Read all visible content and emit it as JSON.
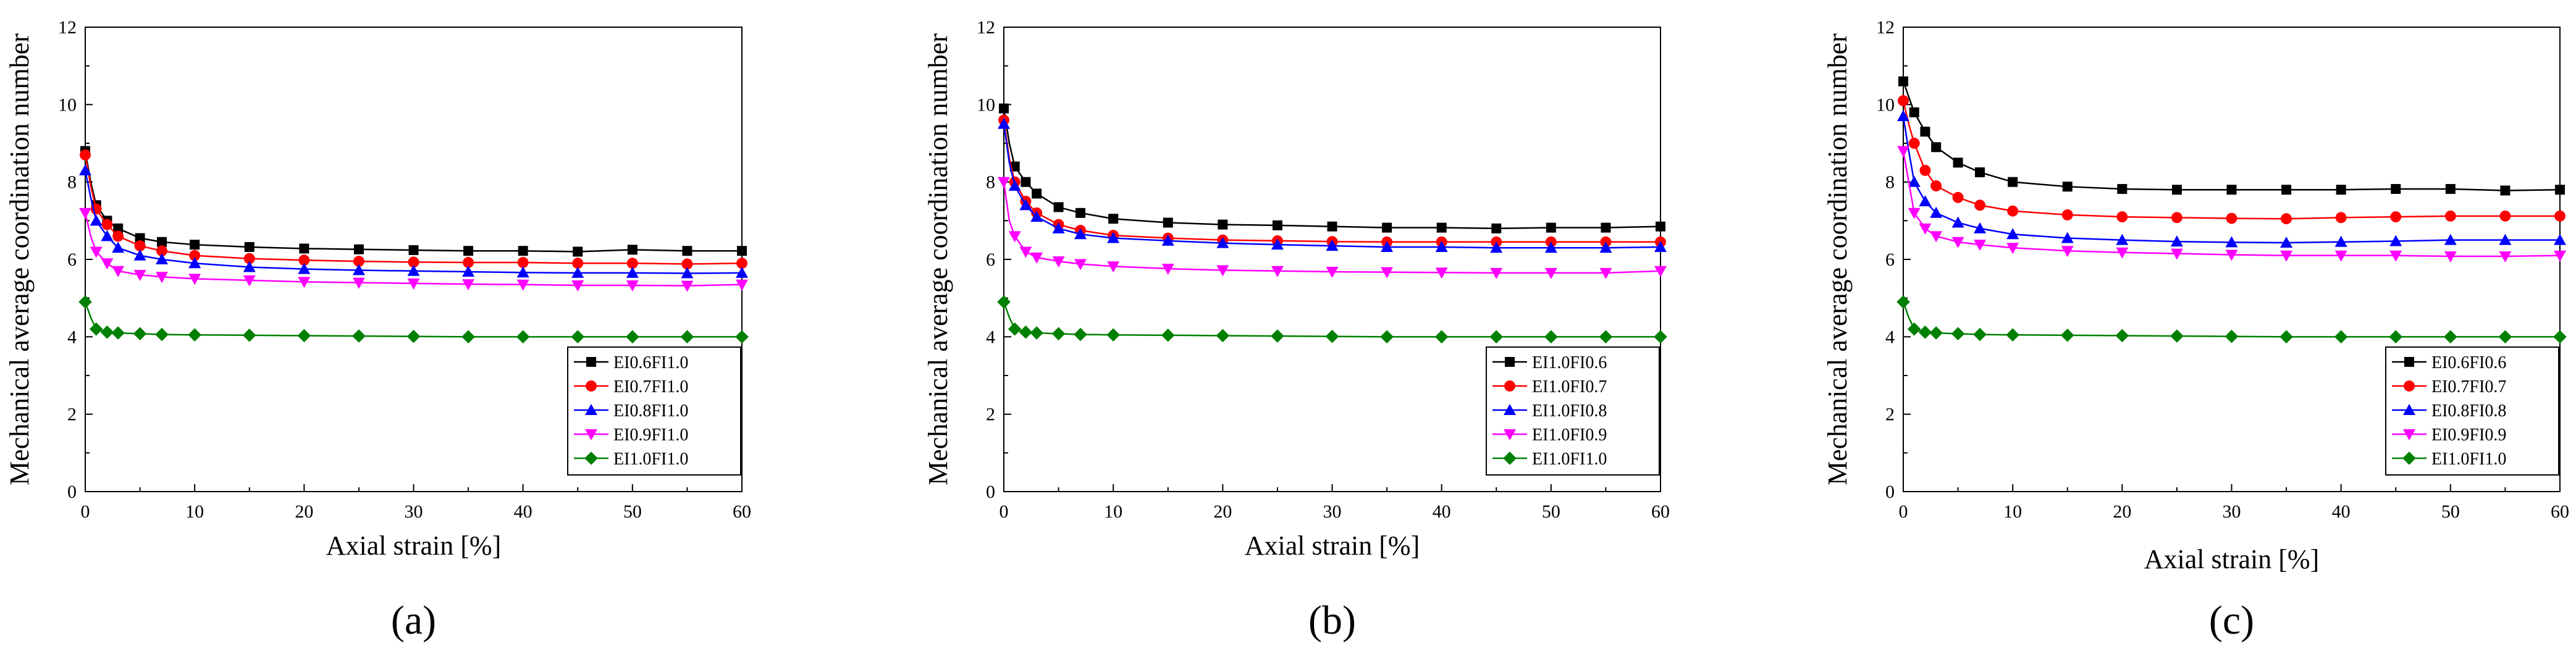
{
  "chart_data": [
    {
      "type": "line",
      "panel_label": "(a)",
      "xlabel": "Axial strain [%]",
      "ylabel": "Mechanical average coordination number",
      "xlim": [
        0,
        60
      ],
      "ylim": [
        0,
        12
      ],
      "xticks": [
        0,
        10,
        20,
        30,
        40,
        50,
        60
      ],
      "yticks": [
        0,
        2,
        4,
        6,
        8,
        10,
        12
      ],
      "legend_position": "bottom-right",
      "series": [
        {
          "name": "EI0.6FI1.0",
          "color": "#000000",
          "marker": "square",
          "x": [
            0,
            0.5,
            1,
            2,
            3,
            5,
            7,
            10,
            15,
            20,
            25,
            30,
            35,
            40,
            45,
            50,
            55,
            60
          ],
          "y": [
            8.8,
            8.0,
            7.4,
            7.0,
            6.8,
            6.55,
            6.45,
            6.38,
            6.32,
            6.28,
            6.26,
            6.24,
            6.22,
            6.22,
            6.2,
            6.25,
            6.22,
            6.22
          ]
        },
        {
          "name": "EI0.7FI1.0",
          "color": "#ff0000",
          "marker": "circle",
          "x": [
            0,
            0.5,
            1,
            2,
            3,
            5,
            7,
            10,
            15,
            20,
            25,
            30,
            35,
            40,
            45,
            50,
            55,
            60
          ],
          "y": [
            8.7,
            7.9,
            7.3,
            6.9,
            6.6,
            6.35,
            6.22,
            6.1,
            6.02,
            5.98,
            5.95,
            5.93,
            5.92,
            5.92,
            5.9,
            5.9,
            5.88,
            5.9
          ]
        },
        {
          "name": "EI0.8FI1.0",
          "color": "#0000ff",
          "marker": "triangle-up",
          "x": [
            0,
            0.5,
            1,
            2,
            3,
            5,
            7,
            10,
            15,
            20,
            25,
            30,
            35,
            40,
            45,
            50,
            55,
            60
          ],
          "y": [
            8.3,
            7.6,
            7.0,
            6.6,
            6.3,
            6.1,
            6.0,
            5.9,
            5.8,
            5.75,
            5.72,
            5.7,
            5.68,
            5.66,
            5.65,
            5.65,
            5.64,
            5.65
          ]
        },
        {
          "name": "EI0.9FI1.0",
          "color": "#ff00ff",
          "marker": "triangle-down",
          "x": [
            0,
            0.5,
            1,
            2,
            3,
            5,
            7,
            10,
            15,
            20,
            25,
            30,
            35,
            40,
            45,
            50,
            55,
            60
          ],
          "y": [
            7.2,
            6.6,
            6.2,
            5.9,
            5.7,
            5.6,
            5.55,
            5.5,
            5.46,
            5.42,
            5.4,
            5.38,
            5.36,
            5.35,
            5.33,
            5.33,
            5.32,
            5.35
          ]
        },
        {
          "name": "EI1.0FI1.0",
          "color": "#008000",
          "marker": "diamond",
          "x": [
            0,
            0.5,
            1,
            2,
            3,
            5,
            7,
            10,
            15,
            20,
            25,
            30,
            35,
            40,
            45,
            50,
            55,
            60
          ],
          "y": [
            4.9,
            4.5,
            4.2,
            4.12,
            4.1,
            4.08,
            4.06,
            4.05,
            4.04,
            4.03,
            4.02,
            4.01,
            4.0,
            4.0,
            4.0,
            4.0,
            4.0,
            4.0
          ]
        }
      ]
    },
    {
      "type": "line",
      "panel_label": "(b)",
      "xlabel": "Axial strain [%]",
      "ylabel": "Mechanical average coordination number",
      "xlim": [
        0,
        60
      ],
      "ylim": [
        0,
        12
      ],
      "xticks": [
        0,
        10,
        20,
        30,
        40,
        50,
        60
      ],
      "yticks": [
        0,
        2,
        4,
        6,
        8,
        10,
        12
      ],
      "legend_position": "bottom-right",
      "series": [
        {
          "name": "EI1.0FI0.6",
          "color": "#000000",
          "marker": "square",
          "x": [
            0,
            0.5,
            1,
            2,
            3,
            5,
            7,
            10,
            15,
            20,
            25,
            30,
            35,
            40,
            45,
            50,
            55,
            60
          ],
          "y": [
            9.9,
            9.0,
            8.4,
            8.0,
            7.7,
            7.35,
            7.2,
            7.05,
            6.95,
            6.9,
            6.88,
            6.85,
            6.82,
            6.82,
            6.8,
            6.82,
            6.82,
            6.85
          ]
        },
        {
          "name": "EI1.0FI0.7",
          "color": "#ff0000",
          "marker": "circle",
          "x": [
            0,
            0.5,
            1,
            2,
            3,
            5,
            7,
            10,
            15,
            20,
            25,
            30,
            35,
            40,
            45,
            50,
            55,
            60
          ],
          "y": [
            9.6,
            8.6,
            8.0,
            7.5,
            7.2,
            6.9,
            6.75,
            6.62,
            6.55,
            6.5,
            6.48,
            6.46,
            6.45,
            6.45,
            6.45,
            6.45,
            6.45,
            6.45
          ]
        },
        {
          "name": "EI1.0FI0.8",
          "color": "#0000ff",
          "marker": "triangle-up",
          "x": [
            0,
            0.5,
            1,
            2,
            3,
            5,
            7,
            10,
            15,
            20,
            25,
            30,
            35,
            40,
            45,
            50,
            55,
            60
          ],
          "y": [
            9.5,
            8.5,
            7.9,
            7.4,
            7.1,
            6.8,
            6.65,
            6.55,
            6.48,
            6.42,
            6.38,
            6.35,
            6.32,
            6.32,
            6.3,
            6.3,
            6.3,
            6.32
          ]
        },
        {
          "name": "EI1.0FI0.9",
          "color": "#ff00ff",
          "marker": "triangle-down",
          "x": [
            0,
            0.5,
            1,
            2,
            3,
            5,
            7,
            10,
            15,
            20,
            25,
            30,
            35,
            40,
            45,
            50,
            55,
            60
          ],
          "y": [
            8.0,
            7.0,
            6.6,
            6.2,
            6.05,
            5.95,
            5.88,
            5.82,
            5.76,
            5.72,
            5.7,
            5.68,
            5.67,
            5.66,
            5.65,
            5.65,
            5.65,
            5.7
          ]
        },
        {
          "name": "EI1.0FI1.0",
          "color": "#008000",
          "marker": "diamond",
          "x": [
            0,
            0.5,
            1,
            2,
            3,
            5,
            7,
            10,
            15,
            20,
            25,
            30,
            35,
            40,
            45,
            50,
            55,
            60
          ],
          "y": [
            4.9,
            4.5,
            4.2,
            4.12,
            4.1,
            4.08,
            4.06,
            4.05,
            4.04,
            4.03,
            4.02,
            4.01,
            4.0,
            4.0,
            4.0,
            4.0,
            4.0,
            4.0
          ]
        }
      ]
    },
    {
      "type": "line",
      "panel_label": "(c)",
      "xlabel": "Axial strain [%]",
      "ylabel": "Mechanical average coordination number",
      "xlim": [
        0,
        60
      ],
      "ylim": [
        0,
        12
      ],
      "xticks": [
        0,
        10,
        20,
        30,
        40,
        50,
        60
      ],
      "yticks": [
        0,
        2,
        4,
        6,
        8,
        10,
        12
      ],
      "legend_position": "bottom-right",
      "series": [
        {
          "name": "EI0.6FI0.6",
          "color": "#000000",
          "marker": "square",
          "x": [
            0,
            0.5,
            1,
            2,
            3,
            5,
            7,
            10,
            15,
            20,
            25,
            30,
            35,
            40,
            45,
            50,
            55,
            60
          ],
          "y": [
            10.6,
            10.2,
            9.8,
            9.3,
            8.9,
            8.5,
            8.25,
            8.0,
            7.88,
            7.82,
            7.8,
            7.8,
            7.8,
            7.8,
            7.82,
            7.82,
            7.78,
            7.8
          ]
        },
        {
          "name": "EI0.7FI0.7",
          "color": "#ff0000",
          "marker": "circle",
          "x": [
            0,
            0.5,
            1,
            2,
            3,
            5,
            7,
            10,
            15,
            20,
            25,
            30,
            35,
            40,
            45,
            50,
            55,
            60
          ],
          "y": [
            10.1,
            9.5,
            9.0,
            8.3,
            7.9,
            7.6,
            7.4,
            7.25,
            7.15,
            7.1,
            7.08,
            7.06,
            7.05,
            7.08,
            7.1,
            7.12,
            7.12,
            7.12
          ]
        },
        {
          "name": "EI0.8FI0.8",
          "color": "#0000ff",
          "marker": "triangle-up",
          "x": [
            0,
            0.5,
            1,
            2,
            3,
            5,
            7,
            10,
            15,
            20,
            25,
            30,
            35,
            40,
            45,
            50,
            55,
            60
          ],
          "y": [
            9.7,
            8.8,
            8.0,
            7.5,
            7.2,
            6.95,
            6.8,
            6.65,
            6.55,
            6.5,
            6.46,
            6.44,
            6.43,
            6.45,
            6.47,
            6.5,
            6.5,
            6.5
          ]
        },
        {
          "name": "EI0.9FI0.9",
          "color": "#ff00ff",
          "marker": "triangle-down",
          "x": [
            0,
            0.5,
            1,
            2,
            3,
            5,
            7,
            10,
            15,
            20,
            25,
            30,
            35,
            40,
            45,
            50,
            55,
            60
          ],
          "y": [
            8.8,
            8.0,
            7.2,
            6.8,
            6.6,
            6.45,
            6.38,
            6.3,
            6.22,
            6.18,
            6.15,
            6.12,
            6.1,
            6.1,
            6.1,
            6.08,
            6.08,
            6.1
          ]
        },
        {
          "name": "EI1.0FI1.0",
          "color": "#008000",
          "marker": "diamond",
          "x": [
            0,
            0.5,
            1,
            2,
            3,
            5,
            7,
            10,
            15,
            20,
            25,
            30,
            35,
            40,
            45,
            50,
            55,
            60
          ],
          "y": [
            4.9,
            4.5,
            4.2,
            4.12,
            4.1,
            4.08,
            4.06,
            4.05,
            4.04,
            4.03,
            4.02,
            4.01,
            4.0,
            4.0,
            4.0,
            4.0,
            4.0,
            4.0
          ]
        }
      ]
    }
  ]
}
